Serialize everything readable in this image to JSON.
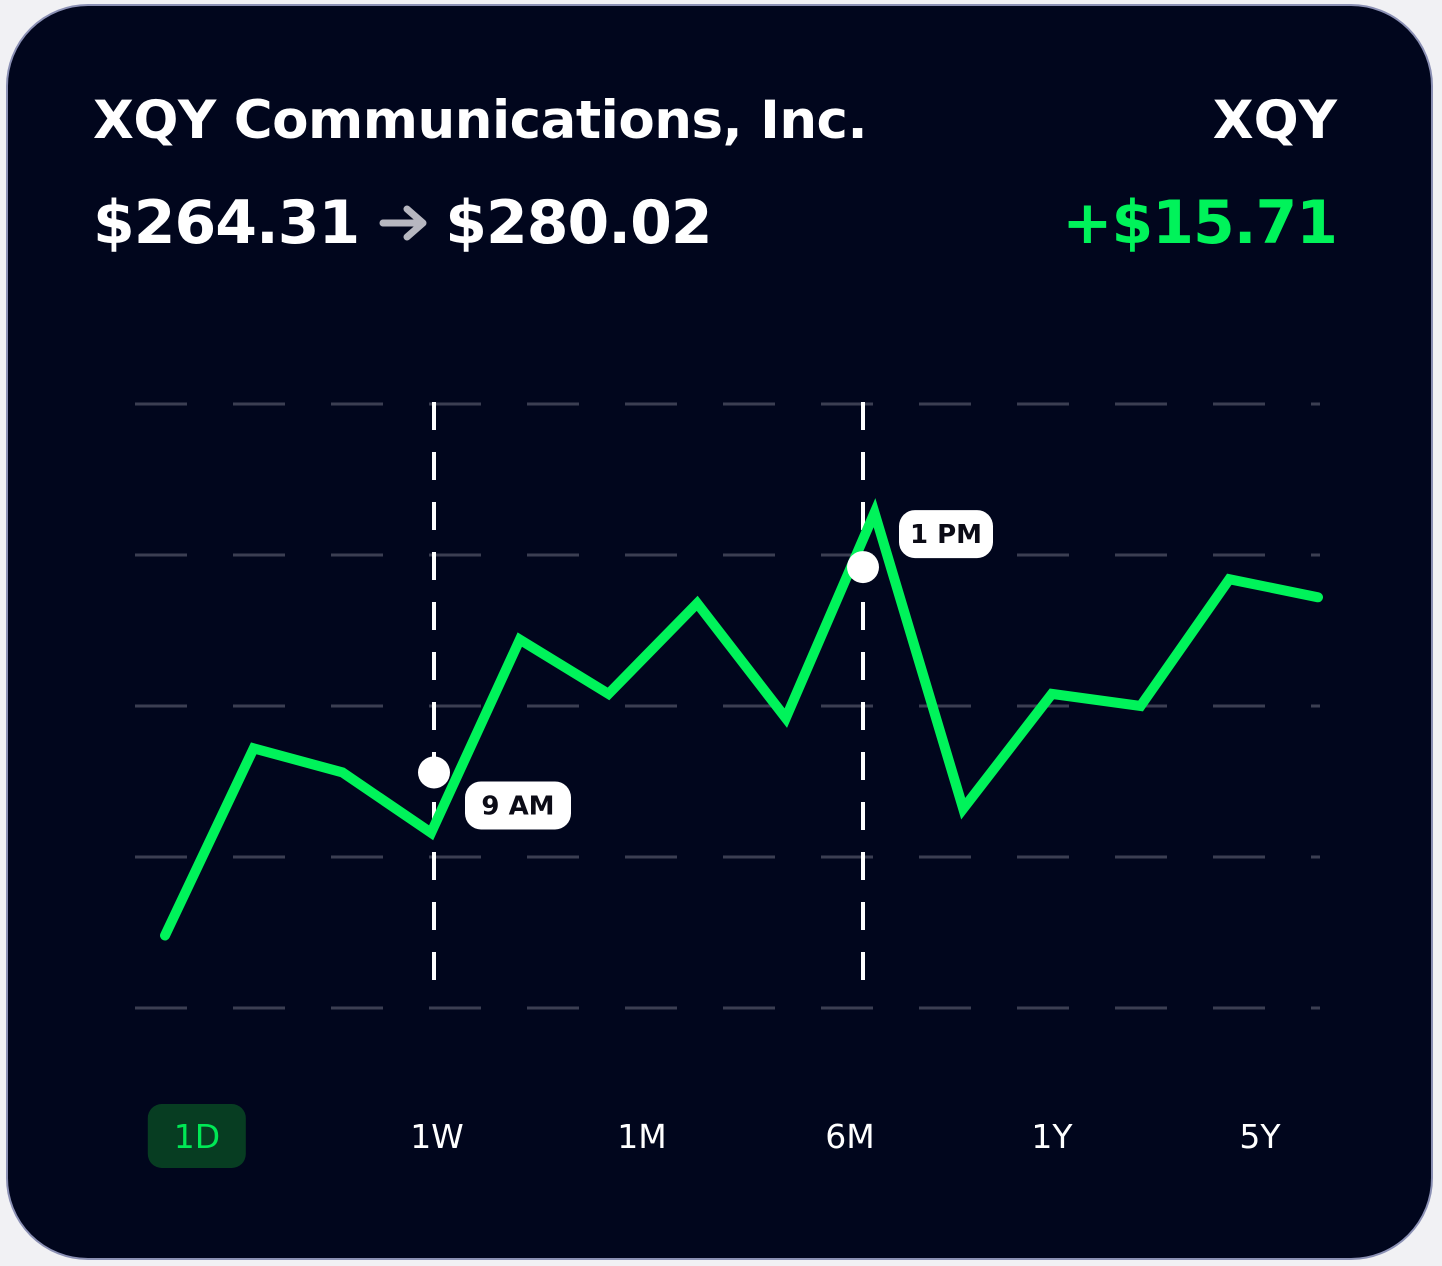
{
  "stock": {
    "company": "XQY Communications, Inc.",
    "ticker": "XQY",
    "price_from": "$264.31",
    "price_to": "$280.02",
    "change": "+$15.71"
  },
  "colors": {
    "background": "#01061d",
    "line": "#00f35a",
    "positive": "#00f35a",
    "active_range_bg": "#073d22",
    "active_range_text": "#00e855"
  },
  "icons": {
    "price_arrow": "arrow-right-icon"
  },
  "markers": [
    {
      "label": "9 AM"
    },
    {
      "label": "1 PM"
    }
  ],
  "ranges": [
    "1D",
    "1W",
    "1M",
    "6M",
    "1Y",
    "5Y"
  ],
  "active_range": "1D",
  "chart_data": {
    "type": "line",
    "grid": "horizontal dashed",
    "series": [
      {
        "values": [
          0.12,
          0.43,
          0.39,
          0.29,
          0.61,
          0.52,
          0.67,
          0.48,
          0.82,
          0.33,
          0.52,
          0.5,
          0.71,
          0.68
        ]
      }
    ],
    "markers": [
      {
        "label": "9 AM",
        "value": 0.39
      },
      {
        "label": "1 PM",
        "value": 0.73
      }
    ]
  }
}
